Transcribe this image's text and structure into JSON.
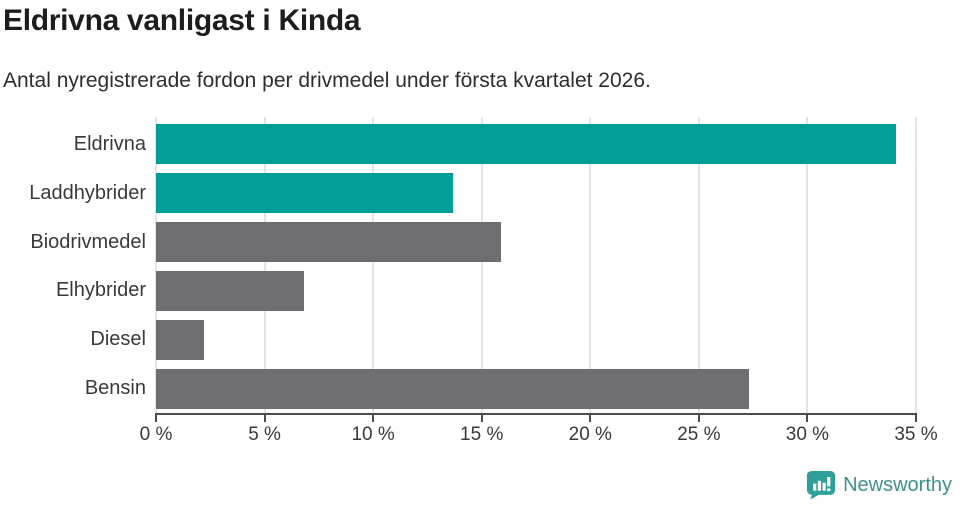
{
  "title": "Eldrivna vanligast i Kinda",
  "subtitle": "Antal nyregistrerade fordon per drivmedel under första kvartalet 2026.",
  "chart_data": {
    "type": "bar",
    "orientation": "horizontal",
    "title": "Eldrivna vanligast i Kinda",
    "subtitle": "Antal nyregistrerade fordon per drivmedel under första kvartalet 2026.",
    "categories": [
      "Eldrivna",
      "Laddhybrider",
      "Biodrivmedel",
      "Elhybrider",
      "Diesel",
      "Bensin"
    ],
    "values": [
      34.1,
      13.7,
      15.9,
      6.8,
      2.2,
      27.3
    ],
    "unit": "%",
    "xlabel": "",
    "ylabel": "",
    "xlim": [
      0,
      35
    ],
    "x_ticks": [
      0,
      5,
      10,
      15,
      20,
      25,
      30,
      35
    ],
    "x_tick_labels": [
      "0 %",
      "5 %",
      "10 %",
      "15 %",
      "20 %",
      "25 %",
      "30 %",
      "35 %"
    ],
    "grid": true,
    "legend": false,
    "highlight_color": "#009e96",
    "default_color": "#6e6d72",
    "bar_colors": [
      "#009e96",
      "#009e96",
      "#6e6d72",
      "#6e6d72",
      "#6e6d72",
      "#6e6d72"
    ]
  },
  "branding": {
    "name": "Newsworthy",
    "logo_icon": "newsworthy-speech-bubble-chart-icon",
    "text_color": "#3f918e",
    "icon_color": "#2f9f99"
  }
}
